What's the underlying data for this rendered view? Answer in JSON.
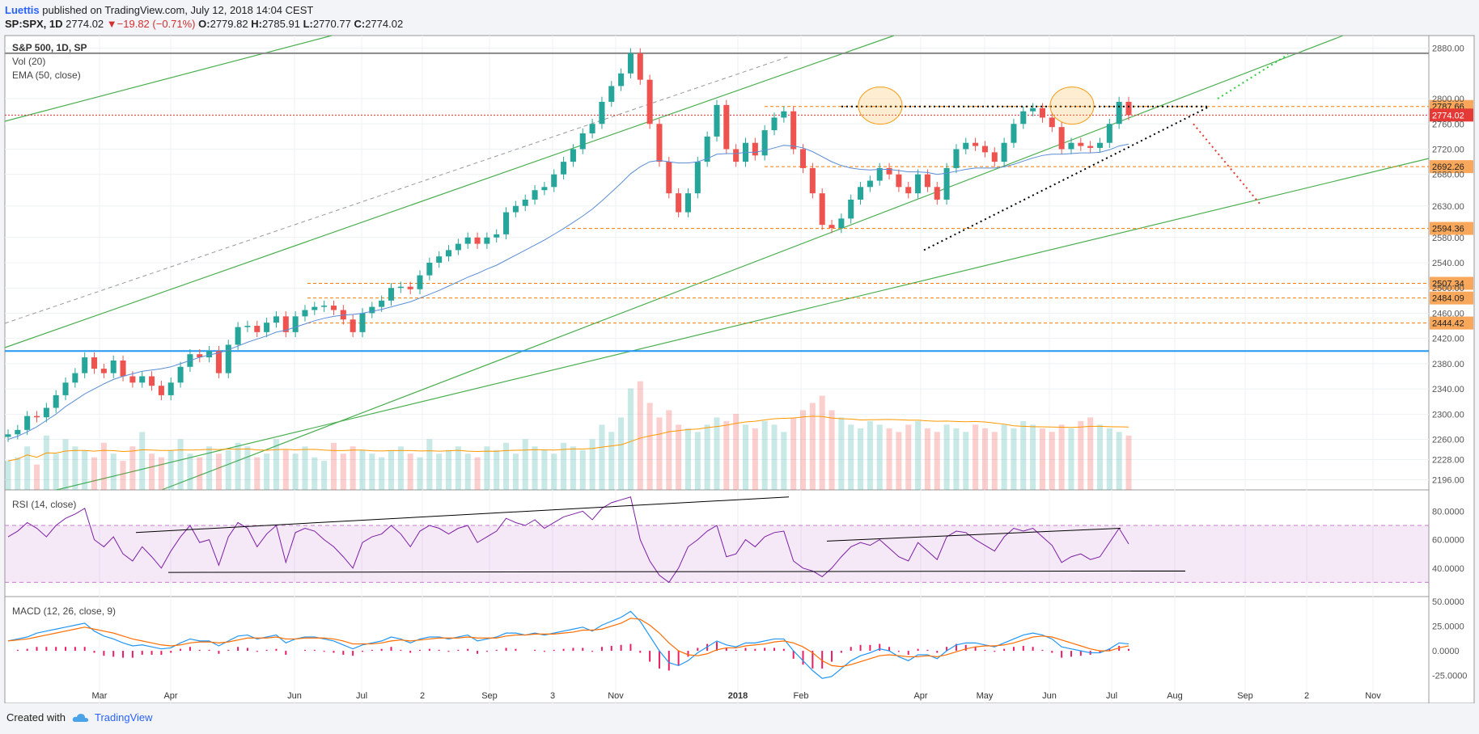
{
  "header": {
    "author": "Luettis",
    "published": " published on TradingView.com, July 12, 2018 14:04 CEST",
    "symbol": "SP:SPX, 1D",
    "last": "2774.02",
    "change_arrow": "▼",
    "change": "−19.82 (−0.71%)",
    "open_label": "O:",
    "open": "2779.82",
    "high_label": "H:",
    "high": "2785.91",
    "low_label": "L:",
    "low": "2770.77",
    "close_label": "C:",
    "close": "2774.02"
  },
  "legend": {
    "main_title": "S&P 500, 1D, SP",
    "vol": "Vol (20)",
    "ema": "EMA (50, close)",
    "rsi": "RSI (14, close)",
    "macd": "MACD (12, 26, close, 9)"
  },
  "footer": {
    "created": "Created with",
    "brand": "TradingView"
  },
  "colors": {
    "up": "#26a69a",
    "down": "#ef5350",
    "channel": "#4caf50",
    "support": "#f57c00",
    "resistance": "#000000",
    "rsi": "#7b1fa2",
    "macd": "#2196f3",
    "signal": "#ff6d00",
    "hist": "#e91e63",
    "ema": "#5b8dd6",
    "support_label_bg": "#f9a85b"
  },
  "chart_data": [
    {
      "type": "candlestick",
      "title": "S&P 500, 1D, SP",
      "price_ticks": [
        2196,
        2228,
        2260,
        2300,
        2340,
        2380,
        2420,
        2460,
        2500,
        2540,
        2580,
        2630,
        2680,
        2720,
        2760,
        2800,
        2880
      ],
      "price_tick_labels": [
        "2196.00",
        "2228.00",
        "2260.00",
        "2300.00",
        "2340.00",
        "2380.00",
        "2420.00",
        "2460.00",
        "2500.00",
        "2540.00",
        "2580.00",
        "2630.00",
        "2680.00",
        "2720.00",
        "2760.00",
        "2800.00",
        "2880.00"
      ],
      "time_labels": [
        "Mar",
        "Apr",
        "Jun",
        "Jul",
        "2",
        "Sep",
        "3",
        "Nov",
        "2018",
        "Feb",
        "Apr",
        "May",
        "Jun",
        "Jul",
        "Aug",
        "Sep",
        "2",
        "Nov"
      ],
      "price_labels": [
        {
          "value": 2787.66,
          "text": "2787.66",
          "kind": "support"
        },
        {
          "value": 2774.02,
          "text": "2774.02",
          "kind": "last"
        },
        {
          "value": 2692.26,
          "text": "2692.26",
          "kind": "support"
        },
        {
          "value": 2594.36,
          "text": "2594.36",
          "kind": "support"
        },
        {
          "value": 2507.34,
          "text": "2507.34",
          "kind": "support"
        },
        {
          "value": 2484.09,
          "text": "2484.09",
          "kind": "support"
        },
        {
          "value": 2444.42,
          "text": "2444.42",
          "kind": "support"
        }
      ],
      "horizontal_lines": [
        {
          "value": 2872,
          "color": "#888888",
          "style": "solid"
        },
        {
          "value": 2400,
          "color": "#2196f3",
          "style": "solid"
        }
      ],
      "path_closes": [
        2268,
        2275,
        2297,
        2295,
        2310,
        2330,
        2350,
        2365,
        2390,
        2372,
        2365,
        2385,
        2360,
        2350,
        2360,
        2345,
        2330,
        2350,
        2375,
        2395,
        2390,
        2400,
        2365,
        2410,
        2438,
        2440,
        2430,
        2445,
        2455,
        2430,
        2455,
        2465,
        2470,
        2472,
        2465,
        2450,
        2430,
        2460,
        2470,
        2480,
        2500,
        2502,
        2498,
        2520,
        2540,
        2550,
        2560,
        2570,
        2580,
        2570,
        2580,
        2585,
        2620,
        2630,
        2640,
        2655,
        2660,
        2680,
        2700,
        2720,
        2745,
        2760,
        2795,
        2820,
        2840,
        2872,
        2830,
        2760,
        2700,
        2650,
        2620,
        2650,
        2700,
        2740,
        2790,
        2720,
        2700,
        2730,
        2710,
        2750,
        2770,
        2780,
        2720,
        2690,
        2650,
        2600,
        2595,
        2610,
        2640,
        2660,
        2670,
        2690,
        2680,
        2660,
        2650,
        2680,
        2660,
        2640,
        2690,
        2720,
        2730,
        2725,
        2715,
        2700,
        2730,
        2760,
        2780,
        2785,
        2770,
        2755,
        2720,
        2730,
        2725,
        2722,
        2730,
        2760,
        2795,
        2774
      ],
      "volume_scale_max": 100,
      "volume": [
        8,
        9,
        12,
        7,
        15,
        10,
        14,
        12,
        11,
        9,
        13,
        10,
        8,
        12,
        16,
        10,
        9,
        11,
        14,
        10,
        9,
        12,
        10,
        11,
        13,
        12,
        9,
        10,
        14,
        11,
        10,
        12,
        9,
        8,
        13,
        10,
        12,
        11,
        10,
        9,
        11,
        12,
        10,
        9,
        14,
        10,
        11,
        12,
        10,
        9,
        12,
        11,
        13,
        10,
        14,
        12,
        11,
        10,
        13,
        12,
        11,
        14,
        18,
        16,
        20,
        28,
        30,
        24,
        20,
        22,
        18,
        17,
        16,
        18,
        20,
        19,
        21,
        18,
        17,
        19,
        18,
        16,
        20,
        22,
        24,
        26,
        22,
        20,
        18,
        17,
        19,
        18,
        17,
        16,
        18,
        19,
        17,
        16,
        18,
        17,
        16,
        18,
        17,
        16,
        18,
        17,
        19,
        18,
        17,
        16,
        18,
        17,
        19,
        20,
        18,
        17,
        16,
        15
      ],
      "ema_closes": [
        2260,
        2265,
        2272,
        2280,
        2290,
        2300,
        2312,
        2322,
        2332,
        2340,
        2348,
        2355,
        2360,
        2364,
        2368,
        2370,
        2372,
        2375,
        2380,
        2385,
        2390,
        2394,
        2397,
        2402,
        2408,
        2414,
        2419,
        2424,
        2430,
        2433,
        2438,
        2443,
        2448,
        2452,
        2455,
        2457,
        2458,
        2460,
        2463,
        2466,
        2470,
        2474,
        2478,
        2484,
        2490,
        2496,
        2503,
        2510,
        2517,
        2523,
        2530,
        2536,
        2544,
        2552,
        2560,
        2568,
        2576,
        2585,
        2594,
        2604,
        2614,
        2625,
        2638,
        2652,
        2666,
        2681,
        2692,
        2700,
        2702,
        2700,
        2698,
        2698,
        2700,
        2705,
        2712,
        2713,
        2713,
        2715,
        2715,
        2718,
        2722,
        2726,
        2725,
        2722,
        2716,
        2708,
        2700,
        2694,
        2690,
        2688,
        2687,
        2688,
        2688,
        2686,
        2684,
        2684,
        2683,
        2680,
        2682,
        2685,
        2688,
        2690,
        2690,
        2690,
        2692,
        2696,
        2701,
        2706,
        2710,
        2712,
        2712,
        2713,
        2714,
        2714,
        2715,
        2719,
        2725,
        2728
      ],
      "rsi": [
        62,
        66,
        72,
        68,
        62,
        70,
        75,
        78,
        82,
        60,
        55,
        62,
        50,
        45,
        55,
        48,
        40,
        52,
        62,
        70,
        58,
        60,
        42,
        62,
        72,
        68,
        55,
        64,
        70,
        44,
        65,
        68,
        66,
        60,
        55,
        48,
        40,
        58,
        62,
        64,
        70,
        64,
        55,
        66,
        70,
        68,
        64,
        68,
        70,
        58,
        62,
        66,
        75,
        72,
        70,
        74,
        68,
        72,
        76,
        78,
        80,
        74,
        82,
        86,
        88,
        90,
        60,
        45,
        35,
        30,
        40,
        55,
        60,
        66,
        70,
        48,
        50,
        60,
        55,
        62,
        65,
        66,
        45,
        40,
        38,
        34,
        40,
        48,
        55,
        58,
        56,
        60,
        54,
        48,
        45,
        58,
        52,
        46,
        62,
        66,
        65,
        60,
        56,
        52,
        62,
        68,
        66,
        68,
        62,
        56,
        44,
        48,
        50,
        46,
        48,
        58,
        68,
        57
      ],
      "rsi_levels": [
        30,
        70
      ],
      "rsi_ticks": [
        40,
        60,
        80
      ],
      "rsi_tick_labels": [
        "40.0000",
        "60.0000",
        "80.0000"
      ],
      "macd": [
        10,
        12,
        14,
        18,
        20,
        22,
        24,
        26,
        28,
        20,
        15,
        12,
        8,
        5,
        6,
        4,
        2,
        3,
        8,
        12,
        10,
        10,
        5,
        10,
        15,
        16,
        12,
        14,
        16,
        8,
        12,
        14,
        14,
        12,
        10,
        6,
        2,
        6,
        8,
        10,
        14,
        12,
        8,
        12,
        14,
        14,
        12,
        14,
        16,
        10,
        12,
        14,
        18,
        18,
        16,
        18,
        16,
        18,
        20,
        22,
        24,
        20,
        26,
        30,
        34,
        40,
        30,
        15,
        0,
        -12,
        -15,
        -10,
        -2,
        4,
        10,
        6,
        4,
        8,
        8,
        10,
        12,
        12,
        0,
        -10,
        -20,
        -28,
        -26,
        -18,
        -10,
        -5,
        -2,
        2,
        0,
        -6,
        -10,
        -4,
        -4,
        -8,
        0,
        6,
        8,
        8,
        6,
        4,
        8,
        12,
        16,
        18,
        16,
        12,
        4,
        2,
        0,
        -2,
        -2,
        2,
        8,
        7
      ],
      "macd_signal": [
        10,
        11,
        12,
        14,
        16,
        18,
        20,
        22,
        24,
        22,
        20,
        18,
        15,
        12,
        10,
        8,
        6,
        5,
        6,
        8,
        9,
        9,
        8,
        9,
        11,
        13,
        13,
        13,
        14,
        12,
        12,
        13,
        13,
        13,
        12,
        10,
        7,
        7,
        7,
        8,
        10,
        11,
        10,
        11,
        12,
        13,
        13,
        13,
        14,
        13,
        13,
        13,
        15,
        16,
        16,
        17,
        17,
        17,
        18,
        19,
        21,
        21,
        22,
        25,
        28,
        33,
        32,
        26,
        18,
        8,
        0,
        -4,
        -5,
        -3,
        1,
        3,
        3,
        5,
        6,
        7,
        9,
        10,
        8,
        4,
        -2,
        -10,
        -15,
        -16,
        -14,
        -11,
        -8,
        -5,
        -4,
        -5,
        -6,
        -6,
        -5,
        -6,
        -4,
        -1,
        2,
        4,
        5,
        5,
        6,
        8,
        11,
        14,
        15,
        14,
        11,
        8,
        5,
        2,
        0,
        0,
        3,
        5
      ],
      "macd_ticks": [
        -25,
        0,
        25,
        50
      ],
      "macd_tick_labels": [
        "-25.0000",
        "0.0000",
        "25.0000",
        "50.0000"
      ]
    }
  ]
}
